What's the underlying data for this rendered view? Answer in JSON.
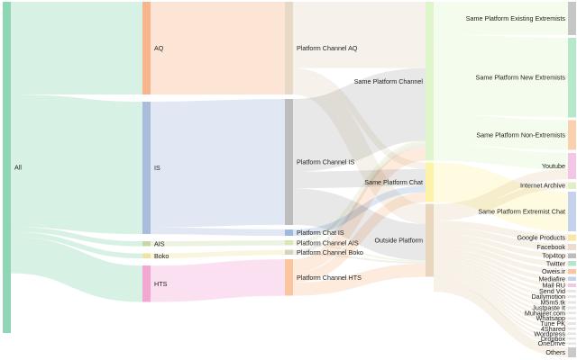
{
  "title": "",
  "colors": {
    "all": "#8fd6b5",
    "aq": "#f8b48a",
    "is": "#a9bcdc",
    "ais": "#c9d7a6",
    "boko": "#f3e2a0",
    "hts": "#f2a7d3",
    "platform_aq": "#e6dac7",
    "platform_is": "#bdbdbd",
    "platform_chat_is": "#9fb9dd",
    "platform_ais": "#d9e6b8",
    "platform_boko": "#d8d2c0",
    "platform_hts": "#f9c6a0",
    "same_channel": "#dff5cc",
    "same_chat": "#fdf3a8",
    "outside": "#e9d6be",
    "existing": "#c6c6c6",
    "new_ext": "#b5e9c9",
    "non_ext": "#fbd0ae",
    "youtube": "#f3c6e6",
    "archive": "#dff0c4",
    "ext_chat": "#c6d2ec",
    "google": "#fbe6a3",
    "facebook": "#ecdccc",
    "top4top": "#bcbcbc",
    "twitter": "#b5e6cc",
    "oweis": "#f9c6a0",
    "mediafire": "#c6d2ec",
    "mailru": "#f3c6e6",
    "small": "#e6e6e6",
    "others": "#c9c9c9"
  },
  "nodes": [
    {
      "id": "all",
      "label": "All",
      "col": 0,
      "value": 100,
      "color": "all"
    },
    {
      "id": "aq",
      "label": "AQ",
      "col": 1,
      "value": 28,
      "color": "aq"
    },
    {
      "id": "is",
      "label": "IS",
      "col": 1,
      "value": 40,
      "color": "is"
    },
    {
      "id": "ais",
      "label": "AIS",
      "col": 1,
      "value": 1.5,
      "color": "ais"
    },
    {
      "id": "boko",
      "label": "Boko",
      "col": 1,
      "value": 1.5,
      "color": "boko"
    },
    {
      "id": "hts",
      "label": "HTS",
      "col": 1,
      "value": 11,
      "color": "hts"
    },
    {
      "id": "p_aq",
      "label": "Platform Channel AQ",
      "col": 2,
      "value": 28,
      "color": "platform_aq"
    },
    {
      "id": "p_is",
      "label": "Platform Channel IS",
      "col": 2,
      "value": 38,
      "color": "platform_is"
    },
    {
      "id": "p_chat_is",
      "label": "Platform Chat IS",
      "col": 2,
      "value": 2,
      "color": "platform_chat_is"
    },
    {
      "id": "p_ais",
      "label": "Platform Channel AIS",
      "col": 2,
      "value": 1.5,
      "color": "platform_ais"
    },
    {
      "id": "p_boko",
      "label": "Platform Channel Boko",
      "col": 2,
      "value": 1.5,
      "color": "platform_boko"
    },
    {
      "id": "p_hts",
      "label": "Platform Channel HTS",
      "col": 2,
      "value": 11,
      "color": "platform_hts"
    },
    {
      "id": "same_channel",
      "label": "Same Platform Channel",
      "col": 3,
      "value": 48,
      "color": "same_channel"
    },
    {
      "id": "same_chat",
      "label": "Same Platform Chat",
      "col": 3,
      "value": 12,
      "color": "same_chat"
    },
    {
      "id": "outside",
      "label": "Outside Platform",
      "col": 3,
      "value": 22,
      "color": "outside"
    },
    {
      "id": "existing",
      "label": "Same Platform Existing Extremists",
      "col": 4,
      "value": 10,
      "color": "existing"
    },
    {
      "id": "new_ext",
      "label": "Same Platform New Extremists",
      "col": 4,
      "value": 24,
      "color": "new_ext"
    },
    {
      "id": "non_ext",
      "label": "Same Platform Non-Extremists",
      "col": 4,
      "value": 9,
      "color": "non_ext"
    },
    {
      "id": "youtube",
      "label": "Youtube",
      "col": 4,
      "value": 8,
      "color": "youtube"
    },
    {
      "id": "archive",
      "label": "Internet Archive",
      "col": 4,
      "value": 2,
      "color": "archive"
    },
    {
      "id": "ext_chat",
      "label": "Same Platform Extremist Chat",
      "col": 4,
      "value": 12,
      "color": "ext_chat"
    },
    {
      "id": "google",
      "label": "Google Products",
      "col": 4,
      "value": 2,
      "color": "google"
    },
    {
      "id": "facebook",
      "label": "Facebook",
      "col": 4,
      "value": 2,
      "color": "facebook"
    },
    {
      "id": "top4top",
      "label": "Top4top",
      "col": 4,
      "value": 1.5,
      "color": "top4top"
    },
    {
      "id": "twitter",
      "label": "Twitter",
      "col": 4,
      "value": 1.5,
      "color": "twitter"
    },
    {
      "id": "oweis",
      "label": "Oweis.ir",
      "col": 4,
      "value": 1.5,
      "color": "oweis"
    },
    {
      "id": "mediafire",
      "label": "Mediafire",
      "col": 4,
      "value": 1.2,
      "color": "mediafire"
    },
    {
      "id": "mailru",
      "label": "Mail RU",
      "col": 4,
      "value": 1,
      "color": "mailru"
    },
    {
      "id": "sendvid",
      "label": "Send Vid",
      "col": 4,
      "value": 0.8,
      "color": "small"
    },
    {
      "id": "dailymotion",
      "label": "Dailymotion",
      "col": 4,
      "value": 0.8,
      "color": "small"
    },
    {
      "id": "m5m5",
      "label": "M5m5.tk",
      "col": 4,
      "value": 0.8,
      "color": "small"
    },
    {
      "id": "justpaste",
      "label": "Justpaste It",
      "col": 4,
      "value": 0.8,
      "color": "small"
    },
    {
      "id": "muhajeer",
      "label": "Muhajeer.com",
      "col": 4,
      "value": 0.7,
      "color": "small"
    },
    {
      "id": "whatsapp",
      "label": "Whatsapp",
      "col": 4,
      "value": 0.7,
      "color": "small"
    },
    {
      "id": "tunepk",
      "label": "Tune PK",
      "col": 4,
      "value": 0.7,
      "color": "small"
    },
    {
      "id": "4shared",
      "label": "4Shared",
      "col": 4,
      "value": 0.7,
      "color": "small"
    },
    {
      "id": "wordpress",
      "label": "Wordpress",
      "col": 4,
      "value": 0.6,
      "color": "small"
    },
    {
      "id": "dropbox",
      "label": "Dropbox",
      "col": 4,
      "value": 0.6,
      "color": "small"
    },
    {
      "id": "onedrive",
      "label": "OneDrive",
      "col": 4,
      "value": 0.6,
      "color": "small"
    },
    {
      "id": "others",
      "label": "Others",
      "col": 4,
      "value": 3,
      "color": "others"
    }
  ],
  "links": [
    {
      "source": "all",
      "target": "aq",
      "value": 28
    },
    {
      "source": "all",
      "target": "is",
      "value": 40
    },
    {
      "source": "all",
      "target": "ais",
      "value": 1.5
    },
    {
      "source": "all",
      "target": "boko",
      "value": 1.5
    },
    {
      "source": "all",
      "target": "hts",
      "value": 11
    },
    {
      "source": "aq",
      "target": "p_aq",
      "value": 28
    },
    {
      "source": "is",
      "target": "p_is",
      "value": 38
    },
    {
      "source": "is",
      "target": "p_chat_is",
      "value": 2
    },
    {
      "source": "ais",
      "target": "p_ais",
      "value": 1.5
    },
    {
      "source": "boko",
      "target": "p_boko",
      "value": 1.5
    },
    {
      "source": "hts",
      "target": "p_hts",
      "value": 11
    },
    {
      "source": "p_aq",
      "target": "same_channel",
      "value": 20
    },
    {
      "source": "p_aq",
      "target": "same_chat",
      "value": 2
    },
    {
      "source": "p_aq",
      "target": "outside",
      "value": 6
    },
    {
      "source": "p_is",
      "target": "same_channel",
      "value": 22
    },
    {
      "source": "p_is",
      "target": "same_chat",
      "value": 5
    },
    {
      "source": "p_is",
      "target": "outside",
      "value": 11
    },
    {
      "source": "p_chat_is",
      "target": "same_chat",
      "value": 2
    },
    {
      "source": "p_ais",
      "target": "same_channel",
      "value": 1
    },
    {
      "source": "p_ais",
      "target": "outside",
      "value": 0.5
    },
    {
      "source": "p_boko",
      "target": "same_channel",
      "value": 1
    },
    {
      "source": "p_boko",
      "target": "outside",
      "value": 0.5
    },
    {
      "source": "p_hts",
      "target": "same_channel",
      "value": 4
    },
    {
      "source": "p_hts",
      "target": "same_chat",
      "value": 3
    },
    {
      "source": "p_hts",
      "target": "outside",
      "value": 4
    },
    {
      "source": "same_channel",
      "target": "existing",
      "value": 10
    },
    {
      "source": "same_channel",
      "target": "new_ext",
      "value": 24
    },
    {
      "source": "same_channel",
      "target": "non_ext",
      "value": 9
    },
    {
      "source": "same_channel",
      "target": "youtube",
      "value": 5
    },
    {
      "source": "same_chat",
      "target": "ext_chat",
      "value": 12
    },
    {
      "source": "outside",
      "target": "youtube",
      "value": 3
    },
    {
      "source": "outside",
      "target": "archive",
      "value": 2
    },
    {
      "source": "outside",
      "target": "google",
      "value": 2
    },
    {
      "source": "outside",
      "target": "facebook",
      "value": 2
    },
    {
      "source": "outside",
      "target": "top4top",
      "value": 1.5
    },
    {
      "source": "outside",
      "target": "twitter",
      "value": 1.5
    },
    {
      "source": "outside",
      "target": "oweis",
      "value": 1.5
    },
    {
      "source": "outside",
      "target": "mediafire",
      "value": 1.2
    },
    {
      "source": "outside",
      "target": "mailru",
      "value": 1
    },
    {
      "source": "outside",
      "target": "sendvid",
      "value": 0.8
    },
    {
      "source": "outside",
      "target": "dailymotion",
      "value": 0.8
    },
    {
      "source": "outside",
      "target": "m5m5",
      "value": 0.8
    },
    {
      "source": "outside",
      "target": "justpaste",
      "value": 0.8
    },
    {
      "source": "outside",
      "target": "muhajeer",
      "value": 0.7
    },
    {
      "source": "outside",
      "target": "whatsapp",
      "value": 0.7
    },
    {
      "source": "outside",
      "target": "tunepk",
      "value": 0.7
    },
    {
      "source": "outside",
      "target": "4shared",
      "value": 0.7
    },
    {
      "source": "outside",
      "target": "wordpress",
      "value": 0.6
    },
    {
      "source": "outside",
      "target": "dropbox",
      "value": 0.6
    },
    {
      "source": "outside",
      "target": "onedrive",
      "value": 0.6
    },
    {
      "source": "outside",
      "target": "others",
      "value": 3
    }
  ]
}
